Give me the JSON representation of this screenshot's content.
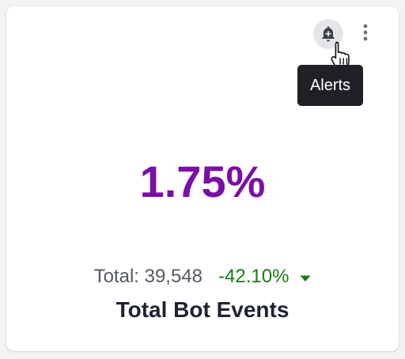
{
  "card": {
    "metric_value": "1.75%",
    "total_text": "Total: 39,548",
    "change_text": "-42.10%",
    "change_direction": "down",
    "title": "Total Bot Events",
    "colors": {
      "metric": "#7a0ea8",
      "change_negative": "#1a7a12",
      "title": "#1e2235"
    }
  },
  "toolbar": {
    "alert_icon": "bell-plus-icon",
    "more_icon": "more-vertical-icon",
    "tooltip": "Alerts"
  },
  "pointer": {
    "icon": "hand-pointer-icon"
  }
}
